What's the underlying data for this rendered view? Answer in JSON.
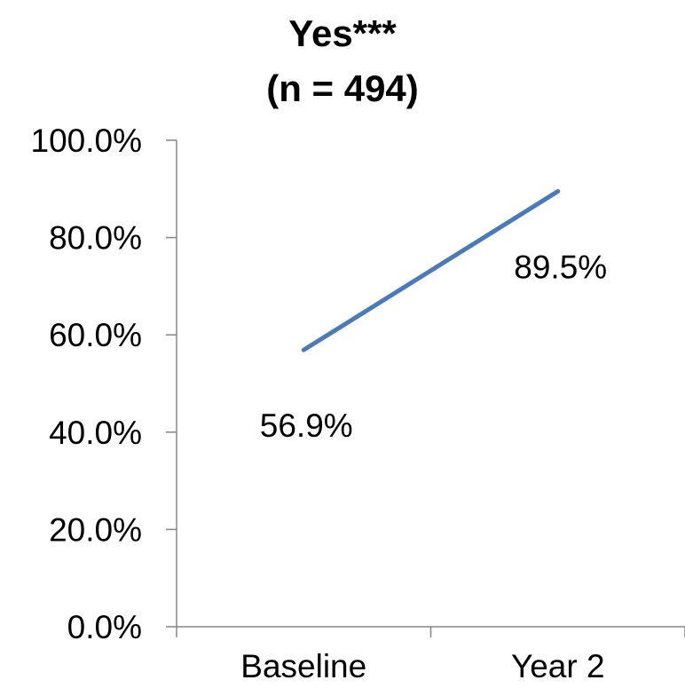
{
  "chart_data": {
    "type": "line",
    "title": "Yes***",
    "subtitle": "(n = 494)",
    "categories": [
      "Baseline",
      "Year 2"
    ],
    "series": [
      {
        "values": [
          56.9,
          89.5
        ],
        "data_labels": [
          "56.9%",
          "89.5%"
        ],
        "color": "#4a7ab8"
      }
    ],
    "ylim": [
      0,
      100
    ],
    "y_ticks": [
      0,
      20,
      40,
      60,
      80,
      100
    ],
    "y_tick_labels": [
      "0.0%",
      "20.0%",
      "40.0%",
      "60.0%",
      "80.0%",
      "100.0%"
    ],
    "xlabel": "",
    "ylabel": "",
    "grid": false,
    "legend": "none"
  }
}
